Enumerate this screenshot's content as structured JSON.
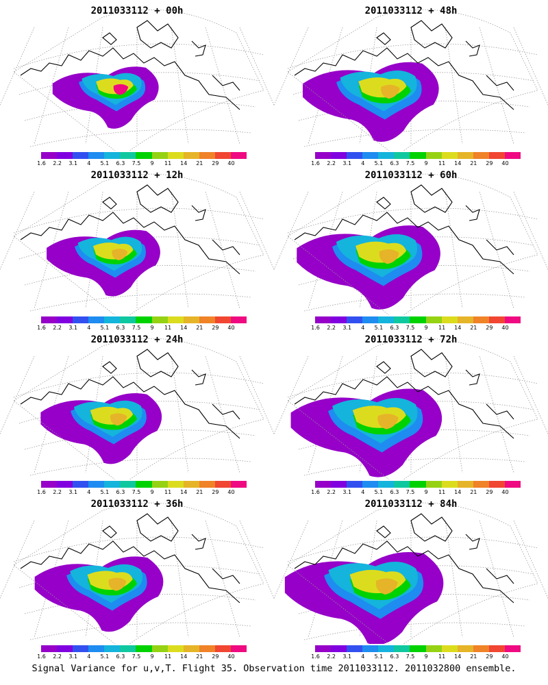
{
  "caption": "Signal Variance for u,v,T. Flight 35. Observation time 2011033112. 2011032800 ensemble.",
  "colorbar": {
    "labels": [
      "1.6",
      "2.2",
      "3.1",
      "4",
      "5.1",
      "6.3",
      "7.5",
      "9",
      "11",
      "14",
      "21",
      "29",
      "40"
    ],
    "colors": [
      "#9600c8",
      "#8000e0",
      "#3250f0",
      "#1e8cf0",
      "#14b4dc",
      "#10c8a0",
      "#00d200",
      "#96d214",
      "#dcdc1e",
      "#e6b428",
      "#f08228",
      "#f04632",
      "#f00a82"
    ]
  },
  "palette": {
    "coast": "#000000",
    "grid": "#9a9a9a"
  },
  "panels": [
    {
      "title": "2011033112 + 00h",
      "col": 0,
      "row": 0
    },
    {
      "title": "2011033112 + 12h",
      "col": 0,
      "row": 1
    },
    {
      "title": "2011033112 + 24h",
      "col": 0,
      "row": 2
    },
    {
      "title": "2011033112 + 36h",
      "col": 0,
      "row": 3
    },
    {
      "title": "2011033112 + 48h",
      "col": 1,
      "row": 0
    },
    {
      "title": "2011033112 + 60h",
      "col": 1,
      "row": 1
    },
    {
      "title": "2011033112 + 72h",
      "col": 1,
      "row": 2
    },
    {
      "title": "2011033112 + 84h",
      "col": 1,
      "row": 3
    }
  ]
}
